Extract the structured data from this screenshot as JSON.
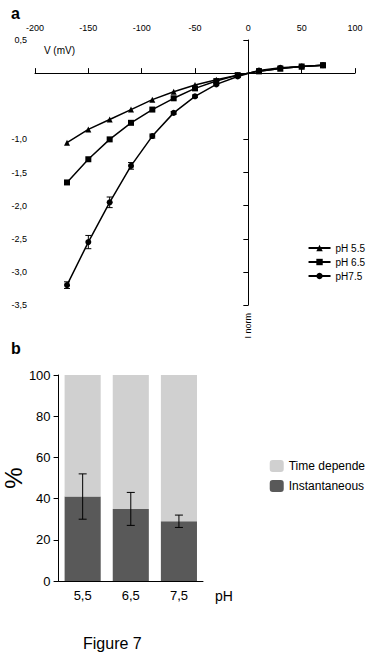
{
  "caption": "Figure 7",
  "chart_data": [
    {
      "type": "line",
      "title": "a",
      "x_label": "V (mV)",
      "y_label": "I norm",
      "xlim": [
        -200,
        100
      ],
      "xticks": [
        -200,
        -150,
        -100,
        -50,
        0,
        50,
        100
      ],
      "ylim": [
        -3.5,
        0.5
      ],
      "yticks": [
        {
          "value": 0.5,
          "label": "0,5"
        },
        {
          "value": -1.0,
          "label": "-1,0"
        },
        {
          "value": -1.5,
          "label": "-1,5"
        },
        {
          "value": -2.0,
          "label": "-2,0"
        },
        {
          "value": -2.5,
          "label": "-2,5"
        },
        {
          "value": -3.0,
          "label": "-3,0"
        },
        {
          "value": -3.5,
          "label": "-3,5"
        }
      ],
      "x": [
        -170,
        -150,
        -130,
        -110,
        -90,
        -70,
        -50,
        -30,
        -10,
        10,
        30,
        50,
        70
      ],
      "legend": "right",
      "series": [
        {
          "name": "pH 5.5",
          "color": "#000000",
          "marker": "triangle",
          "values": [
            -1.05,
            -0.85,
            -0.7,
            -0.55,
            -0.4,
            -0.28,
            -0.18,
            -0.1,
            -0.03,
            0.03,
            0.07,
            0.1,
            0.12
          ]
        },
        {
          "name": "pH 6.5",
          "color": "#000000",
          "marker": "square",
          "values": [
            -1.65,
            -1.3,
            -1.0,
            -0.75,
            -0.55,
            -0.38,
            -0.23,
            -0.12,
            -0.03,
            0.03,
            0.07,
            0.1,
            0.12
          ]
        },
        {
          "name": "pH7.5",
          "color": "#000000",
          "marker": "circle",
          "values": [
            -3.2,
            -2.55,
            -1.95,
            -1.4,
            -0.95,
            -0.6,
            -0.35,
            -0.17,
            -0.05,
            0.04,
            0.08,
            0.1,
            0.12
          ],
          "errors": [
            0.05,
            0.1,
            0.08,
            0.05,
            0.03,
            0.02,
            0.02,
            0.01,
            0.01,
            0.01,
            0.01,
            0.01,
            0.01
          ]
        }
      ]
    },
    {
      "type": "bar",
      "title": "b",
      "x_label": "pH",
      "y_label": "%",
      "stacked": true,
      "categories": [
        "5,5",
        "6,5",
        "7,5"
      ],
      "ylim": [
        0,
        100
      ],
      "yticks": [
        0,
        20,
        40,
        60,
        80,
        100
      ],
      "legend": "right",
      "series": [
        {
          "name": "Instantaneous",
          "color": "#595959",
          "values": [
            41,
            35,
            29
          ],
          "errors": [
            11,
            8,
            3
          ]
        },
        {
          "name": "Time depende",
          "color": "#d0d0d0",
          "values": [
            59,
            65,
            71
          ]
        }
      ]
    }
  ]
}
